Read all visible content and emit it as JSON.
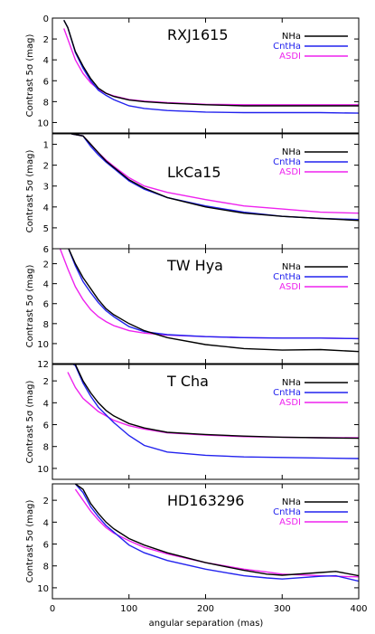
{
  "xlabel": "angular separation (mas)",
  "x_tick_labels": [
    "0",
    "100",
    "200",
    "300",
    "400"
  ],
  "series_colors": {
    "NHa": "#000000",
    "CntHa": "#2222ee",
    "ASDI": "#ee22ee"
  },
  "chart_data": [
    {
      "type": "line",
      "title": "RXJ1615",
      "ylabel": "Contrast 5σ (mag)",
      "xlim": [
        0,
        400
      ],
      "ylim": [
        11,
        0
      ],
      "y_tick_labels": [
        "0",
        "2",
        "4",
        "6",
        "8",
        "10"
      ],
      "y_tick_values": [
        0,
        2,
        4,
        6,
        8,
        10
      ],
      "legend": "top-right",
      "x": [
        15,
        20,
        30,
        40,
        50,
        60,
        70,
        80,
        100,
        120,
        150,
        200,
        250,
        300,
        350,
        400
      ],
      "series": [
        {
          "name": "NHa",
          "color": "#000000",
          "values": [
            0.2,
            0.9,
            3.2,
            4.6,
            5.8,
            6.7,
            7.2,
            7.5,
            7.85,
            8.0,
            8.15,
            8.3,
            8.4,
            8.4,
            8.4,
            8.4
          ]
        },
        {
          "name": "CntHa",
          "color": "#2222ee",
          "values": [
            0.2,
            0.9,
            3.3,
            4.8,
            6.0,
            6.9,
            7.4,
            7.8,
            8.4,
            8.65,
            8.85,
            9.0,
            9.05,
            9.05,
            9.05,
            9.1
          ]
        },
        {
          "name": "ASDI",
          "color": "#ee22ee",
          "values": [
            1.0,
            2.0,
            4.0,
            5.3,
            6.2,
            6.8,
            7.2,
            7.45,
            7.8,
            7.95,
            8.1,
            8.25,
            8.3,
            8.3,
            8.3,
            8.3
          ]
        }
      ]
    },
    {
      "type": "line",
      "title": "LkCa15",
      "ylabel": "Contrast 5σ (mag)",
      "xlim": [
        0,
        400
      ],
      "ylim": [
        6,
        0.5
      ],
      "y_tick_labels": [
        "1",
        "2",
        "3",
        "4",
        "5",
        "6"
      ],
      "y_tick_values": [
        1,
        2,
        3,
        4,
        5,
        6
      ],
      "legend": "top-right",
      "x": [
        25,
        40,
        50,
        60,
        70,
        80,
        100,
        120,
        150,
        200,
        250,
        300,
        350,
        400
      ],
      "series": [
        {
          "name": "NHa",
          "color": "#000000",
          "values": [
            0.5,
            0.6,
            1.0,
            1.4,
            1.8,
            2.1,
            2.7,
            3.1,
            3.55,
            4.0,
            4.3,
            4.45,
            4.55,
            4.65
          ]
        },
        {
          "name": "CntHa",
          "color": "#2222ee",
          "values": [
            0.5,
            0.6,
            1.1,
            1.5,
            1.85,
            2.15,
            2.75,
            3.15,
            3.55,
            3.95,
            4.25,
            4.45,
            4.55,
            4.6
          ]
        },
        {
          "name": "ASDI",
          "color": "#ee22ee",
          "values": [
            0.5,
            0.6,
            1.0,
            1.4,
            1.75,
            2.05,
            2.6,
            3.0,
            3.3,
            3.65,
            3.95,
            4.1,
            4.25,
            4.3
          ]
        }
      ]
    },
    {
      "type": "line",
      "title": "TW Hya",
      "ylabel": "Contrast 5σ (mag)",
      "xlim": [
        0,
        400
      ],
      "ylim": [
        12,
        0.5
      ],
      "y_tick_labels": [
        "2",
        "4",
        "6",
        "8",
        "10",
        "12"
      ],
      "y_tick_values": [
        2,
        4,
        6,
        8,
        10,
        12
      ],
      "legend": "top-right",
      "x": [
        10,
        20,
        30,
        40,
        50,
        60,
        70,
        80,
        100,
        120,
        150,
        200,
        250,
        300,
        350,
        400
      ],
      "series": [
        {
          "name": "NHa",
          "color": "#000000",
          "values": [
            0.2,
            0.3,
            2.0,
            3.4,
            4.5,
            5.6,
            6.5,
            7.1,
            8.0,
            8.7,
            9.4,
            10.1,
            10.5,
            10.65,
            10.6,
            10.8
          ]
        },
        {
          "name": "CntHa",
          "color": "#2222ee",
          "values": [
            0.2,
            0.3,
            2.2,
            3.8,
            4.9,
            5.9,
            6.7,
            7.3,
            8.3,
            8.8,
            9.1,
            9.3,
            9.4,
            9.45,
            9.45,
            9.5
          ]
        },
        {
          "name": "ASDI",
          "color": "#ee22ee",
          "values": [
            0.5,
            2.5,
            4.3,
            5.6,
            6.6,
            7.3,
            7.8,
            8.2,
            8.7,
            8.95,
            9.15,
            9.3,
            9.4,
            9.45,
            9.45,
            9.5
          ]
        }
      ]
    },
    {
      "type": "line",
      "title": "T Cha",
      "ylabel": "Contrast 5σ (mag)",
      "xlim": [
        0,
        400
      ],
      "ylim": [
        11,
        0.5
      ],
      "y_tick_labels": [
        "2",
        "4",
        "6",
        "8",
        "10"
      ],
      "y_tick_values": [
        2,
        4,
        6,
        8,
        10
      ],
      "legend": "top-right",
      "x": [
        20,
        30,
        40,
        50,
        60,
        70,
        80,
        100,
        120,
        150,
        200,
        250,
        300,
        350,
        400
      ],
      "series": [
        {
          "name": "NHa",
          "color": "#000000",
          "values": [
            0.2,
            0.5,
            2.0,
            3.1,
            4.0,
            4.7,
            5.2,
            5.9,
            6.3,
            6.7,
            6.9,
            7.05,
            7.15,
            7.2,
            7.25
          ]
        },
        {
          "name": "CntHa",
          "color": "#2222ee",
          "values": [
            0.2,
            0.6,
            2.2,
            3.4,
            4.4,
            5.1,
            5.8,
            7.0,
            7.9,
            8.5,
            8.8,
            8.95,
            9.0,
            9.05,
            9.1
          ]
        },
        {
          "name": "ASDI",
          "color": "#ee22ee",
          "values": [
            1.2,
            2.6,
            3.6,
            4.2,
            4.8,
            5.2,
            5.6,
            6.1,
            6.4,
            6.75,
            6.95,
            7.1,
            7.15,
            7.2,
            7.2
          ]
        }
      ]
    },
    {
      "type": "line",
      "title": "HD163296",
      "ylabel": "Contrast 5σ (mag)",
      "xlim": [
        0,
        400
      ],
      "ylim": [
        11,
        0.5
      ],
      "y_tick_labels": [
        "2",
        "4",
        "6",
        "8",
        "10"
      ],
      "y_tick_values": [
        2,
        4,
        6,
        8,
        10
      ],
      "legend": "top-right",
      "x": [
        30,
        40,
        50,
        60,
        70,
        80,
        100,
        120,
        150,
        200,
        250,
        280,
        300,
        350,
        370,
        400
      ],
      "series": [
        {
          "name": "NHa",
          "color": "#000000",
          "values": [
            0.5,
            1.0,
            2.3,
            3.2,
            4.0,
            4.6,
            5.5,
            6.1,
            6.8,
            7.7,
            8.4,
            8.75,
            8.85,
            8.6,
            8.5,
            8.9
          ]
        },
        {
          "name": "CntHa",
          "color": "#2222ee",
          "values": [
            0.5,
            1.3,
            2.6,
            3.5,
            4.3,
            4.9,
            6.1,
            6.8,
            7.5,
            8.3,
            8.9,
            9.1,
            9.2,
            8.95,
            8.9,
            9.4
          ]
        },
        {
          "name": "ASDI",
          "color": "#ee22ee",
          "values": [
            1.0,
            2.0,
            3.0,
            3.8,
            4.5,
            5.0,
            5.7,
            6.3,
            6.9,
            7.7,
            8.3,
            8.55,
            8.75,
            8.9,
            8.95,
            9.0
          ]
        }
      ]
    }
  ]
}
